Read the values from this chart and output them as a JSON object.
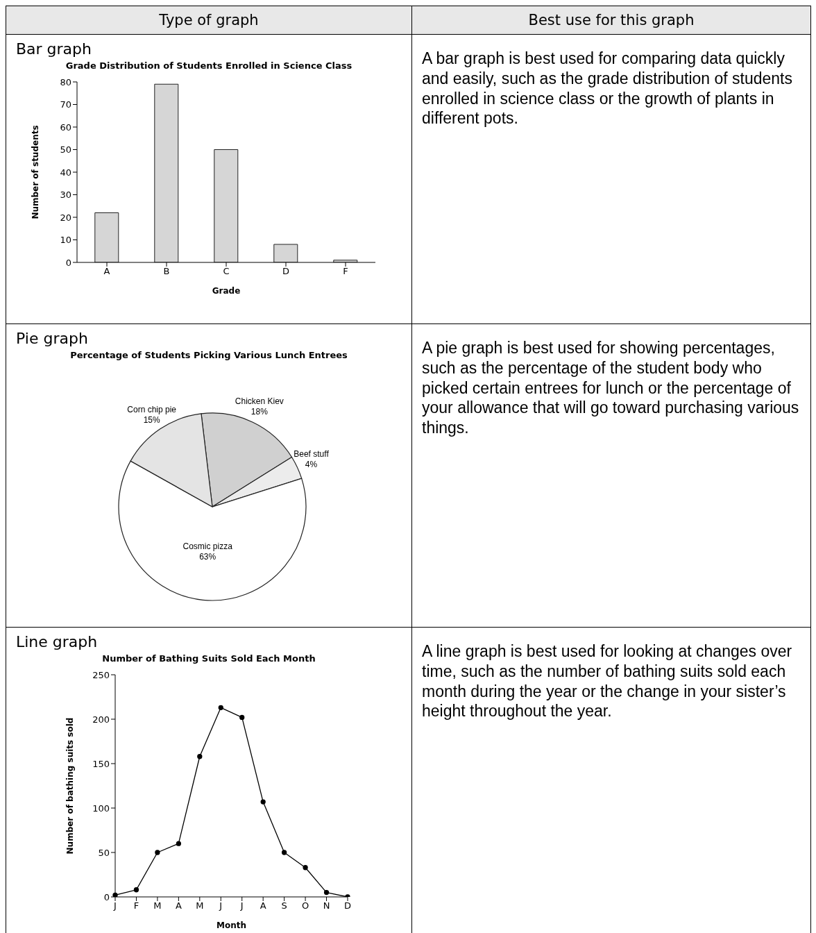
{
  "chart_data": [
    {
      "type": "bar",
      "title": "Grade Distribution of Students Enrolled in Science Class",
      "xlabel": "Grade",
      "ylabel": "Number of students",
      "categories": [
        "A",
        "B",
        "C",
        "D",
        "F"
      ],
      "values": [
        22,
        79,
        50,
        8,
        1
      ],
      "color": "#d6d6d6",
      "ylim": [
        0,
        80
      ],
      "yticks": [
        0,
        10,
        20,
        30,
        40,
        50,
        60,
        70,
        80
      ],
      "annotations": [
        "Type of graph",
        "Best use for this graph",
        "Bar graph",
        "A bar graph is best used for comparing data quickly and easily, such as the grade distribution of students enrolled in science class or the growth of plants in different pots."
      ]
    },
    {
      "type": "pie",
      "title": "Percentage of Students Picking Various Lunch Entrees",
      "categories": [
        "Chicken Kiev",
        "Beef stuff",
        "Cosmic pizza",
        "Corn chip pie"
      ],
      "values": [
        18,
        4,
        63,
        15
      ],
      "value_labels": [
        "18%",
        "4%",
        "63%",
        "15%"
      ],
      "colors": [
        "#d0d0d0",
        "#ececec",
        "#ffffff",
        "#e4e4e4"
      ],
      "annotations": [
        "Pie graph",
        "A pie graph is best used for showing percentages, such as the percentage of the student body who picked certain entrees for lunch or the percentage of your allowance that will go toward purchasing various things."
      ]
    },
    {
      "type": "line",
      "title": "Number of Bathing Suits Sold Each Month",
      "xlabel": "Month",
      "ylabel": "Number of bathing suits sold",
      "categories": [
        "J",
        "F",
        "M",
        "A",
        "M",
        "J",
        "J",
        "A",
        "S",
        "O",
        "N",
        "D"
      ],
      "values": [
        2,
        8,
        50,
        60,
        158,
        213,
        202,
        107,
        50,
        33,
        5,
        0
      ],
      "color": "#000000",
      "marker": "circle",
      "line_style": "solid",
      "ylim": [
        0,
        250
      ],
      "yticks": [
        0,
        50,
        100,
        150,
        200,
        250
      ],
      "annotations": [
        "Line graph",
        "A line graph is best used for looking at changes over time, such as the number of bathing suits sold each month during the year or the change in your sister’s height throughout the year."
      ]
    }
  ]
}
